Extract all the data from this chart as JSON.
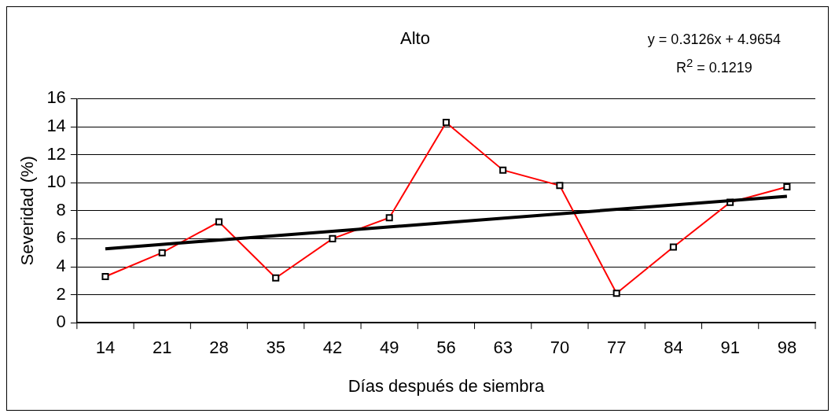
{
  "chart_data": {
    "type": "line",
    "title": "Alto",
    "xlabel": "Días después de siembra",
    "ylabel": "Severidad (%)",
    "categories": [
      "14",
      "21",
      "28",
      "35",
      "42",
      "49",
      "56",
      "63",
      "70",
      "77",
      "84",
      "91",
      "98"
    ],
    "series": [
      {
        "color": "#ff0000",
        "marker": "square",
        "values": [
          3.3,
          5.0,
          7.2,
          3.2,
          6.0,
          7.5,
          14.3,
          10.9,
          9.8,
          2.1,
          5.4,
          8.6,
          9.7
        ]
      },
      {
        "type": "line",
        "color": "#000000",
        "marker": "none",
        "x": [
          "14",
          "98"
        ],
        "values": [
          5.28,
          9.03
        ]
      }
    ],
    "ylim": [
      0,
      16
    ],
    "yticks": [
      0,
      2,
      4,
      6,
      8,
      10,
      12,
      14,
      16
    ],
    "grid": "y",
    "legend": false,
    "annotations": [
      "y = 0.3126x + 4.9654",
      "R$^{2}$ = 0.1219"
    ]
  }
}
